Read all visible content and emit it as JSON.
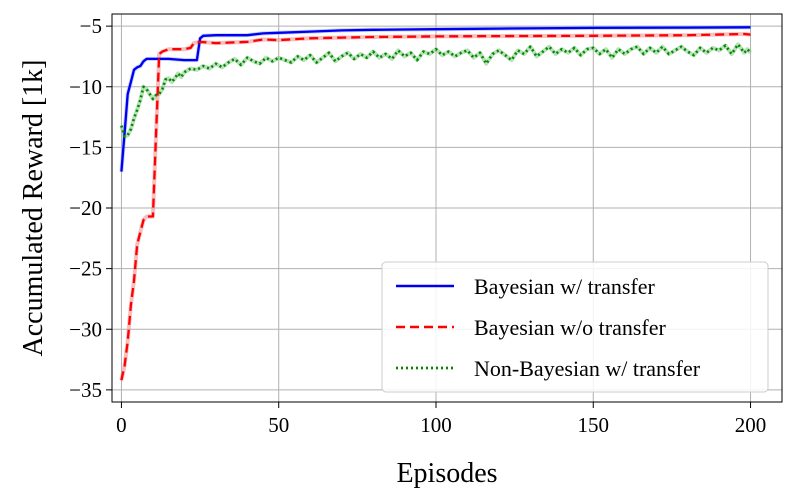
{
  "chart_data": {
    "type": "line",
    "xlabel": "Episodes",
    "ylabel": "Accumulated Reward [1k]",
    "xlim": [
      -3,
      210
    ],
    "ylim": [
      -36,
      -4
    ],
    "xticks": [
      0,
      50,
      100,
      150,
      200
    ],
    "yticks": [
      -35,
      -30,
      -25,
      -20,
      -15,
      -10,
      -5
    ],
    "xtick_labels": [
      "0",
      "50",
      "100",
      "150",
      "200"
    ],
    "ytick_labels": [
      "−35",
      "−30",
      "−25",
      "−20",
      "−15",
      "−10",
      "−5"
    ],
    "grid": true,
    "legend_position": "lower-right",
    "series": [
      {
        "name": "Bayesian w/ transfer",
        "color": "#0000ee",
        "style": "solid",
        "points": [
          [
            0,
            -17
          ],
          [
            1,
            -13.8
          ],
          [
            2,
            -10.6
          ],
          [
            3,
            -9.6
          ],
          [
            4,
            -8.6
          ],
          [
            5,
            -8.4
          ],
          [
            6,
            -8.3
          ],
          [
            7,
            -7.9
          ],
          [
            8,
            -7.7
          ],
          [
            10,
            -7.7
          ],
          [
            15,
            -7.7
          ],
          [
            20,
            -7.8
          ],
          [
            24,
            -7.8
          ],
          [
            25,
            -6.0
          ],
          [
            26,
            -5.8
          ],
          [
            30,
            -5.75
          ],
          [
            40,
            -5.75
          ],
          [
            45,
            -5.6
          ],
          [
            50,
            -5.55
          ],
          [
            60,
            -5.45
          ],
          [
            70,
            -5.35
          ],
          [
            80,
            -5.3
          ],
          [
            90,
            -5.28
          ],
          [
            100,
            -5.25
          ],
          [
            120,
            -5.2
          ],
          [
            150,
            -5.15
          ],
          [
            180,
            -5.12
          ],
          [
            200,
            -5.1
          ]
        ]
      },
      {
        "name": "Bayesian w/o transfer",
        "color": "#ff0000",
        "style": "dashed",
        "points": [
          [
            0,
            -34.2
          ],
          [
            1,
            -33
          ],
          [
            2,
            -31
          ],
          [
            3,
            -28
          ],
          [
            4,
            -26
          ],
          [
            5,
            -23
          ],
          [
            6,
            -22
          ],
          [
            7,
            -21
          ],
          [
            8,
            -20.7
          ],
          [
            10,
            -20.7
          ],
          [
            11,
            -14
          ],
          [
            12,
            -7.3
          ],
          [
            13,
            -7.1
          ],
          [
            15,
            -6.9
          ],
          [
            20,
            -6.9
          ],
          [
            22,
            -6.8
          ],
          [
            23,
            -6.4
          ],
          [
            25,
            -6.3
          ],
          [
            30,
            -6.4
          ],
          [
            40,
            -6.3
          ],
          [
            45,
            -6.1
          ],
          [
            50,
            -6.15
          ],
          [
            60,
            -6.0
          ],
          [
            70,
            -5.95
          ],
          [
            80,
            -5.9
          ],
          [
            100,
            -5.85
          ],
          [
            120,
            -5.82
          ],
          [
            150,
            -5.8
          ],
          [
            180,
            -5.75
          ],
          [
            198,
            -5.65
          ],
          [
            200,
            -5.7
          ]
        ]
      },
      {
        "name": "Non-Bayesian w/ transfer",
        "color": "#008800",
        "style": "dotted",
        "points": [
          [
            0,
            -13.2
          ],
          [
            1,
            -14.1
          ],
          [
            2,
            -14.0
          ],
          [
            3,
            -13.5
          ],
          [
            4,
            -12.6
          ],
          [
            5,
            -11.9
          ],
          [
            6,
            -11.1
          ],
          [
            7,
            -10.0
          ],
          [
            8,
            -10.2
          ],
          [
            9,
            -10.6
          ],
          [
            10,
            -11.0
          ],
          [
            11,
            -10.7
          ],
          [
            12,
            -10.6
          ],
          [
            13,
            -10.2
          ],
          [
            14,
            -9.4
          ],
          [
            15,
            -9.3
          ],
          [
            16,
            -9.6
          ],
          [
            17,
            -9.3
          ],
          [
            18,
            -8.9
          ],
          [
            19,
            -9.2
          ],
          [
            20,
            -8.8
          ],
          [
            22,
            -8.5
          ],
          [
            24,
            -8.6
          ],
          [
            26,
            -8.3
          ],
          [
            28,
            -8.5
          ],
          [
            30,
            -8.1
          ],
          [
            32,
            -8.4
          ],
          [
            34,
            -8.0
          ],
          [
            36,
            -7.7
          ],
          [
            38,
            -8.2
          ],
          [
            40,
            -7.6
          ],
          [
            42,
            -7.9
          ],
          [
            44,
            -8.1
          ],
          [
            46,
            -7.6
          ],
          [
            48,
            -7.9
          ],
          [
            50,
            -7.6
          ],
          [
            52,
            -7.8
          ],
          [
            54,
            -8.0
          ],
          [
            56,
            -7.5
          ],
          [
            58,
            -7.8
          ],
          [
            60,
            -7.4
          ],
          [
            62,
            -8.0
          ],
          [
            64,
            -7.6
          ],
          [
            66,
            -7.2
          ],
          [
            68,
            -7.9
          ],
          [
            70,
            -7.5
          ],
          [
            72,
            -7.2
          ],
          [
            74,
            -7.7
          ],
          [
            76,
            -7.3
          ],
          [
            78,
            -7.6
          ],
          [
            80,
            -7.1
          ],
          [
            82,
            -7.6
          ],
          [
            84,
            -7.3
          ],
          [
            86,
            -7.7
          ],
          [
            88,
            -7.0
          ],
          [
            90,
            -7.5
          ],
          [
            92,
            -7.2
          ],
          [
            94,
            -7.8
          ],
          [
            96,
            -7.1
          ],
          [
            98,
            -7.3
          ],
          [
            100,
            -6.9
          ],
          [
            102,
            -7.4
          ],
          [
            104,
            -7.1
          ],
          [
            106,
            -7.5
          ],
          [
            108,
            -7.2
          ],
          [
            110,
            -7.0
          ],
          [
            112,
            -7.6
          ],
          [
            114,
            -7.2
          ],
          [
            116,
            -8.1
          ],
          [
            118,
            -7.3
          ],
          [
            120,
            -7.0
          ],
          [
            122,
            -7.4
          ],
          [
            124,
            -7.8
          ],
          [
            126,
            -7.0
          ],
          [
            128,
            -7.3
          ],
          [
            130,
            -6.7
          ],
          [
            132,
            -7.5
          ],
          [
            134,
            -7.1
          ],
          [
            136,
            -6.7
          ],
          [
            138,
            -7.3
          ],
          [
            140,
            -6.9
          ],
          [
            142,
            -7.2
          ],
          [
            144,
            -6.8
          ],
          [
            146,
            -7.4
          ],
          [
            148,
            -6.9
          ],
          [
            150,
            -6.8
          ],
          [
            152,
            -7.3
          ],
          [
            154,
            -6.9
          ],
          [
            156,
            -7.6
          ],
          [
            158,
            -6.9
          ],
          [
            160,
            -7.3
          ],
          [
            162,
            -6.9
          ],
          [
            164,
            -6.7
          ],
          [
            166,
            -7.3
          ],
          [
            168,
            -6.8
          ],
          [
            170,
            -7.2
          ],
          [
            172,
            -6.7
          ],
          [
            174,
            -7.3
          ],
          [
            176,
            -7.0
          ],
          [
            178,
            -6.7
          ],
          [
            180,
            -7.1
          ],
          [
            182,
            -7.4
          ],
          [
            184,
            -6.8
          ],
          [
            186,
            -7.2
          ],
          [
            188,
            -6.8
          ],
          [
            190,
            -7.0
          ],
          [
            192,
            -6.6
          ],
          [
            194,
            -7.3
          ],
          [
            196,
            -6.5
          ],
          [
            198,
            -7.2
          ],
          [
            199,
            -6.9
          ],
          [
            200,
            -7.2
          ]
        ]
      }
    ]
  }
}
